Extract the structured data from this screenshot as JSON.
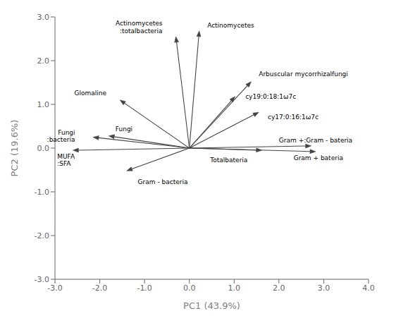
{
  "chart_data": {
    "type": "biplot",
    "xlabel": "PC1 (43.9%)",
    "ylabel": "PC2 (19.6%)",
    "xlim": [
      -3.0,
      4.0
    ],
    "ylim": [
      -3.0,
      3.0
    ],
    "xticks": [
      {
        "value": -3.0,
        "label": "-3.0"
      },
      {
        "value": -2.0,
        "label": "-2.0"
      },
      {
        "value": -1.0,
        "label": "-1.0"
      },
      {
        "value": 0.0,
        "label": "0.0"
      },
      {
        "value": 1.0,
        "label": "1.0"
      },
      {
        "value": 2.0,
        "label": "2.0"
      },
      {
        "value": 3.0,
        "label": "3.0"
      },
      {
        "value": 4.0,
        "label": "4.0"
      }
    ],
    "yticks": [
      {
        "value": -3.0,
        "label": "-3.0"
      },
      {
        "value": -2.0,
        "label": "-2.0"
      },
      {
        "value": -1.0,
        "label": "-1.0"
      },
      {
        "value": 0.0,
        "label": "0.0"
      },
      {
        "value": 1.0,
        "label": "1.0"
      },
      {
        "value": 2.0,
        "label": "2.0"
      },
      {
        "value": 3.0,
        "label": "3.0"
      }
    ],
    "color": "#444444",
    "arrows": [
      {
        "x": -0.3,
        "y": 2.55,
        "label": "Actinomycetes\n:totalbacteria",
        "label_x": -0.6,
        "label_y": 2.6
      },
      {
        "x": 0.22,
        "y": 2.68,
        "label": "Actinomycetes",
        "label_x": 0.4,
        "label_y": 2.72
      },
      {
        "x": -1.55,
        "y": 1.1,
        "label": "Glomaline",
        "label_x": -1.85,
        "label_y": 1.18
      },
      {
        "x": -1.8,
        "y": 0.28,
        "label": "Fungi",
        "label_x": -1.65,
        "label_y": 0.36
      },
      {
        "x": -2.15,
        "y": 0.25,
        "label": "Fungi\n:bacteria",
        "label_x": -2.55,
        "label_y": 0.28
      },
      {
        "x": -2.6,
        "y": -0.05,
        "label": "MUFA\n:SFA",
        "label_x": -2.95,
        "label_y": -0.04
      },
      {
        "x": -1.4,
        "y": -0.52,
        "label": "Gram - bacteria",
        "label_x": -1.15,
        "label_y": -0.7
      },
      {
        "x": 1.02,
        "y": 1.18,
        "label": "cy19:0:18:1ω7c",
        "label_x": 1.25,
        "label_y": 1.18
      },
      {
        "x": 1.55,
        "y": 0.82,
        "label": "cy17:0:16:1ω7c",
        "label_x": 1.75,
        "label_y": 0.78
      },
      {
        "x": 1.38,
        "y": 1.52,
        "label": "Arbuscular mycorrhizalfungi",
        "label_x": 1.55,
        "label_y": 1.62
      },
      {
        "x": 2.72,
        "y": 0.05,
        "label": "Gram +:Gram - bateria",
        "label_x": 2.82,
        "label_y": 0.1
      },
      {
        "x": 2.82,
        "y": -0.08,
        "label": "Gram + bateria",
        "label_x": 2.88,
        "label_y": -0.15
      },
      {
        "x": 1.62,
        "y": -0.05,
        "label": "Totalbateria",
        "label_x": 1.3,
        "label_y": -0.2
      }
    ]
  }
}
